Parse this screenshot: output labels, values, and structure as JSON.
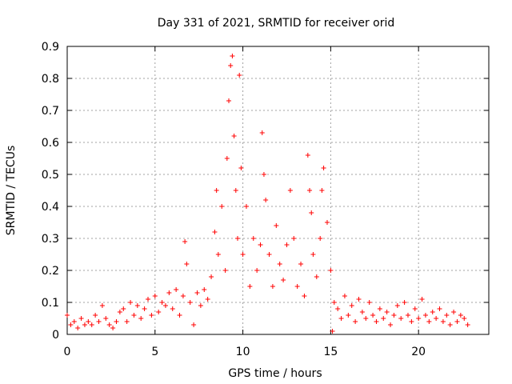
{
  "chart_data": {
    "type": "scatter",
    "title": "Day 331 of 2021, SRMTID for receiver orid",
    "xlabel": "GPS time / hours",
    "ylabel": "SRMTID / TECUs",
    "xlim": [
      0,
      24
    ],
    "ylim": [
      0,
      0.9
    ],
    "xticks": [
      0,
      5,
      10,
      15,
      20
    ],
    "xtick_labels": [
      "0",
      "5",
      "10",
      "15",
      "20"
    ],
    "yticks": [
      0,
      0.1,
      0.2,
      0.3,
      0.4,
      0.5,
      0.6,
      0.7,
      0.8,
      0.9
    ],
    "ytick_labels": [
      "0",
      "0.1",
      "0.2",
      "0.3",
      "0.4",
      "0.5",
      "0.6",
      "0.7",
      "0.8",
      "0.9"
    ],
    "grid": true,
    "marker": "+",
    "color": "#ff0000",
    "series": [
      {
        "name": "SRMTID",
        "points": [
          [
            0.0,
            0.06
          ],
          [
            0.2,
            0.03
          ],
          [
            0.4,
            0.04
          ],
          [
            0.6,
            0.02
          ],
          [
            0.8,
            0.05
          ],
          [
            1.0,
            0.03
          ],
          [
            1.2,
            0.04
          ],
          [
            1.4,
            0.03
          ],
          [
            1.6,
            0.06
          ],
          [
            1.8,
            0.04
          ],
          [
            2.0,
            0.09
          ],
          [
            2.2,
            0.05
          ],
          [
            2.4,
            0.03
          ],
          [
            2.6,
            0.02
          ],
          [
            2.8,
            0.04
          ],
          [
            3.0,
            0.07
          ],
          [
            3.2,
            0.08
          ],
          [
            3.4,
            0.04
          ],
          [
            3.6,
            0.1
          ],
          [
            3.8,
            0.06
          ],
          [
            4.0,
            0.09
          ],
          [
            4.2,
            0.05
          ],
          [
            4.4,
            0.08
          ],
          [
            4.6,
            0.11
          ],
          [
            4.8,
            0.06
          ],
          [
            5.0,
            0.12
          ],
          [
            5.2,
            0.07
          ],
          [
            5.4,
            0.1
          ],
          [
            5.6,
            0.09
          ],
          [
            5.8,
            0.13
          ],
          [
            6.0,
            0.08
          ],
          [
            6.2,
            0.14
          ],
          [
            6.4,
            0.06
          ],
          [
            6.6,
            0.12
          ],
          [
            6.7,
            0.29
          ],
          [
            6.8,
            0.22
          ],
          [
            7.0,
            0.1
          ],
          [
            7.2,
            0.03
          ],
          [
            7.4,
            0.13
          ],
          [
            7.6,
            0.09
          ],
          [
            7.8,
            0.14
          ],
          [
            8.0,
            0.11
          ],
          [
            8.2,
            0.18
          ],
          [
            8.4,
            0.32
          ],
          [
            8.5,
            0.45
          ],
          [
            8.6,
            0.25
          ],
          [
            8.8,
            0.4
          ],
          [
            9.0,
            0.2
          ],
          [
            9.1,
            0.55
          ],
          [
            9.2,
            0.73
          ],
          [
            9.3,
            0.84
          ],
          [
            9.4,
            0.87
          ],
          [
            9.5,
            0.62
          ],
          [
            9.6,
            0.45
          ],
          [
            9.7,
            0.3
          ],
          [
            9.8,
            0.81
          ],
          [
            9.9,
            0.52
          ],
          [
            10.0,
            0.25
          ],
          [
            10.2,
            0.4
          ],
          [
            10.4,
            0.15
          ],
          [
            10.6,
            0.3
          ],
          [
            10.8,
            0.2
          ],
          [
            11.0,
            0.28
          ],
          [
            11.1,
            0.63
          ],
          [
            11.2,
            0.5
          ],
          [
            11.3,
            0.42
          ],
          [
            11.5,
            0.25
          ],
          [
            11.7,
            0.15
          ],
          [
            11.9,
            0.34
          ],
          [
            12.1,
            0.22
          ],
          [
            12.3,
            0.17
          ],
          [
            12.5,
            0.28
          ],
          [
            12.7,
            0.45
          ],
          [
            12.9,
            0.3
          ],
          [
            13.1,
            0.15
          ],
          [
            13.3,
            0.22
          ],
          [
            13.5,
            0.12
          ],
          [
            13.7,
            0.56
          ],
          [
            13.8,
            0.45
          ],
          [
            13.9,
            0.38
          ],
          [
            14.0,
            0.25
          ],
          [
            14.2,
            0.18
          ],
          [
            14.4,
            0.3
          ],
          [
            14.5,
            0.45
          ],
          [
            14.6,
            0.52
          ],
          [
            14.8,
            0.35
          ],
          [
            15.0,
            0.2
          ],
          [
            15.1,
            0.01
          ],
          [
            15.2,
            0.1
          ],
          [
            15.4,
            0.08
          ],
          [
            15.6,
            0.05
          ],
          [
            15.8,
            0.12
          ],
          [
            16.0,
            0.06
          ],
          [
            16.2,
            0.09
          ],
          [
            16.4,
            0.04
          ],
          [
            16.6,
            0.11
          ],
          [
            16.8,
            0.07
          ],
          [
            17.0,
            0.05
          ],
          [
            17.2,
            0.1
          ],
          [
            17.4,
            0.06
          ],
          [
            17.6,
            0.04
          ],
          [
            17.8,
            0.08
          ],
          [
            18.0,
            0.05
          ],
          [
            18.2,
            0.07
          ],
          [
            18.4,
            0.03
          ],
          [
            18.6,
            0.06
          ],
          [
            18.8,
            0.09
          ],
          [
            19.0,
            0.05
          ],
          [
            19.2,
            0.1
          ],
          [
            19.4,
            0.06
          ],
          [
            19.6,
            0.04
          ],
          [
            19.8,
            0.08
          ],
          [
            20.0,
            0.05
          ],
          [
            20.2,
            0.11
          ],
          [
            20.4,
            0.06
          ],
          [
            20.6,
            0.04
          ],
          [
            20.8,
            0.07
          ],
          [
            21.0,
            0.05
          ],
          [
            21.2,
            0.08
          ],
          [
            21.4,
            0.04
          ],
          [
            21.6,
            0.06
          ],
          [
            21.8,
            0.03
          ],
          [
            22.0,
            0.07
          ],
          [
            22.2,
            0.04
          ],
          [
            22.4,
            0.06
          ],
          [
            22.6,
            0.05
          ],
          [
            22.8,
            0.03
          ]
        ]
      }
    ]
  }
}
